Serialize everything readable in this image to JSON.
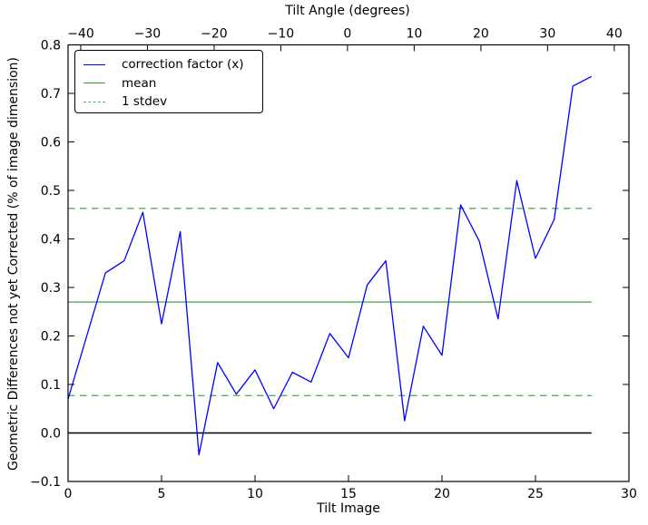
{
  "figure": {
    "background": "#ffffff",
    "frame_color": "#000000"
  },
  "chart_data": {
    "type": "line",
    "xlabel": "Tilt Image",
    "ylabel": "Geometric Differences not yet Corrected (% of image dimension)",
    "top_axis": {
      "label": "Tilt Angle (degrees)",
      "ticks": [
        -40,
        -30,
        -20,
        -10,
        0,
        10,
        20,
        30,
        40
      ],
      "lim": [
        -41.9,
        42.2
      ]
    },
    "xlim": [
      0,
      30
    ],
    "ylim": [
      -0.1,
      0.8
    ],
    "x_ticks": [
      0,
      5,
      10,
      15,
      20,
      25,
      30
    ],
    "y_ticks": [
      0.8,
      0.7,
      0.6,
      0.5,
      0.4,
      0.3,
      0.2,
      0.1,
      0.0,
      -0.1
    ],
    "grid": false,
    "legend_position": "upper left",
    "x": [
      0,
      1,
      2,
      3,
      4,
      5,
      6,
      7,
      8,
      9,
      10,
      11,
      12,
      13,
      14,
      15,
      16,
      17,
      18,
      19,
      20,
      21,
      22,
      23,
      24,
      25,
      26,
      27,
      28
    ],
    "series": [
      {
        "name": "correction factor (x)",
        "color": "#0000ff",
        "style": "solid",
        "values": [
          0.07,
          0.2,
          0.33,
          0.355,
          0.455,
          0.225,
          0.415,
          -0.045,
          0.145,
          0.08,
          0.13,
          0.05,
          0.125,
          0.105,
          0.205,
          0.155,
          0.305,
          0.355,
          0.025,
          0.22,
          0.16,
          0.47,
          0.395,
          0.235,
          0.52,
          0.36,
          0.44,
          0.715,
          0.735
        ]
      },
      {
        "name": "mean",
        "color": "#2e9e2e",
        "style": "solid",
        "value": 0.27
      },
      {
        "name": "1 stdev",
        "color": "#55b355",
        "style": "dashed",
        "values": [
          0.463,
          0.077
        ]
      }
    ],
    "mean": 0.27,
    "stdev": 0.193,
    "zero_line": {
      "value": 0.0,
      "color": "#000000"
    },
    "reference_line_x_extent": [
      0,
      28
    ]
  }
}
